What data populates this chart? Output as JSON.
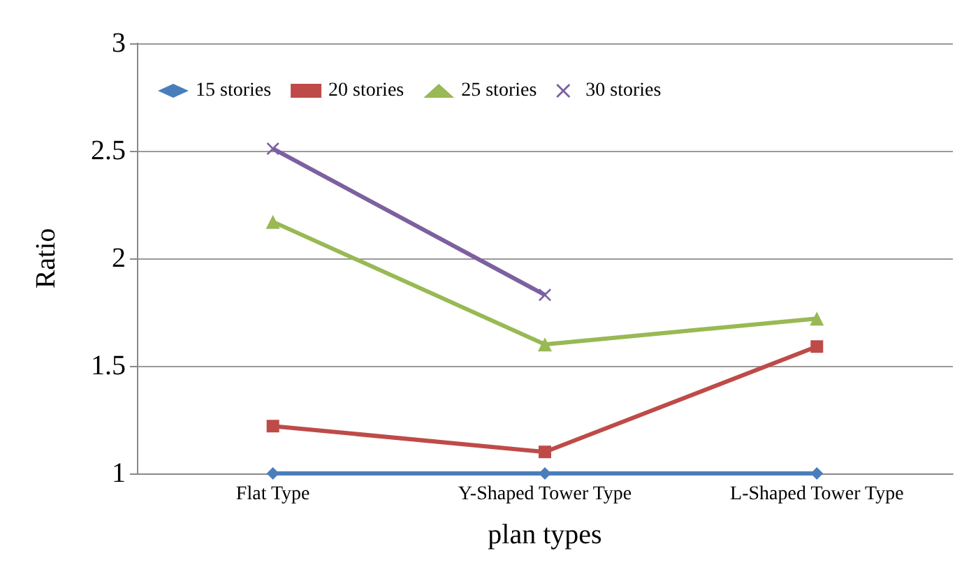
{
  "chart_data": {
    "type": "line",
    "xlabel": "plan types",
    "ylabel": "Ratio",
    "categories": [
      "Flat Type",
      "Y-Shaped Tower Type",
      "L-Shaped Tower Type"
    ],
    "series": [
      {
        "name": "15 stories",
        "color": "#4a7ebb",
        "marker": "diamond",
        "values": [
          1,
          1,
          1
        ]
      },
      {
        "name": "20 stories",
        "color": "#be4b48",
        "marker": "square",
        "values": [
          1.22,
          1.1,
          1.59
        ]
      },
      {
        "name": "25 stories",
        "color": "#98b954",
        "marker": "triangle",
        "values": [
          2.17,
          1.6,
          1.72
        ]
      },
      {
        "name": "30 stories",
        "color": "#7d60a0",
        "marker": "cross",
        "values": [
          2.51,
          1.83,
          null
        ]
      }
    ],
    "ylim": [
      1,
      3
    ],
    "yticks": [
      1,
      1.5,
      2,
      2.5,
      3
    ],
    "grid": "y",
    "legend": "top left"
  }
}
